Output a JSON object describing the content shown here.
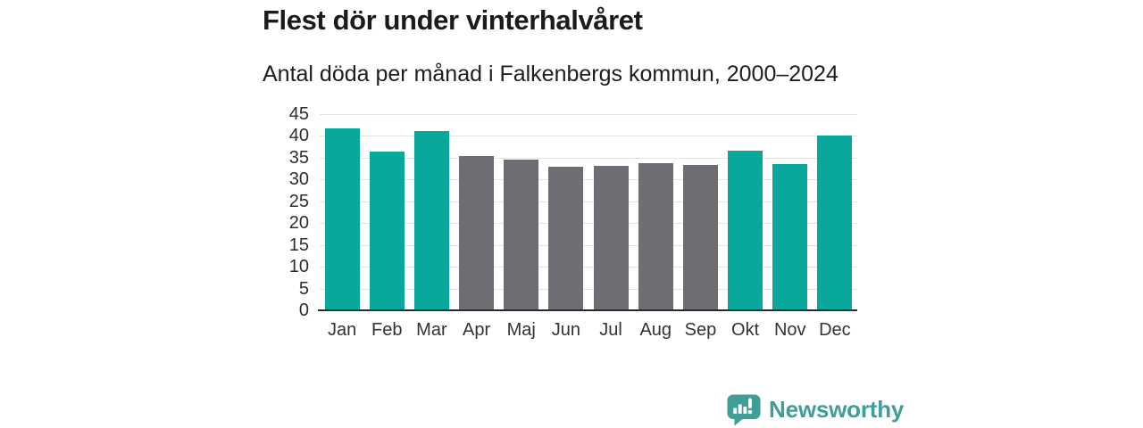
{
  "header": {
    "title": "Flest dör under vinterhalvåret",
    "subtitle": "Antal döda per månad i Falkenbergs kommun, 2000–2024"
  },
  "chart_data": {
    "type": "bar",
    "title": "Flest dör under vinterhalvåret",
    "subtitle": "Antal döda per månad i Falkenbergs kommun, 2000–2024",
    "categories": [
      "Jan",
      "Feb",
      "Mar",
      "Apr",
      "Maj",
      "Jun",
      "Jul",
      "Aug",
      "Sep",
      "Okt",
      "Nov",
      "Dec"
    ],
    "values": [
      41.8,
      36.5,
      41.2,
      35.3,
      34.5,
      32.9,
      33.2,
      33.8,
      33.4,
      36.7,
      33.6,
      40.0
    ],
    "bar_colors": [
      "#0aa79c",
      "#0aa79c",
      "#0aa79c",
      "#6d6d74",
      "#6d6d74",
      "#6d6d74",
      "#6d6d74",
      "#6d6d74",
      "#6d6d74",
      "#0aa79c",
      "#0aa79c",
      "#0aa79c"
    ],
    "xlabel": "",
    "ylabel": "",
    "ylim": [
      0,
      45
    ],
    "ytick_step": 5,
    "yticks": [
      0,
      5,
      10,
      15,
      20,
      25,
      30,
      35,
      40,
      45
    ],
    "grid": "horizontal",
    "legend": "none"
  },
  "colors": {
    "winter_bar": "#0aa79c",
    "summer_bar": "#6d6d74",
    "gridline": "#e4e4e4",
    "axis_line": "#2b2b2b",
    "brand_teal": "#3f9e97"
  },
  "footer": {
    "brand": "Newsworthy"
  }
}
